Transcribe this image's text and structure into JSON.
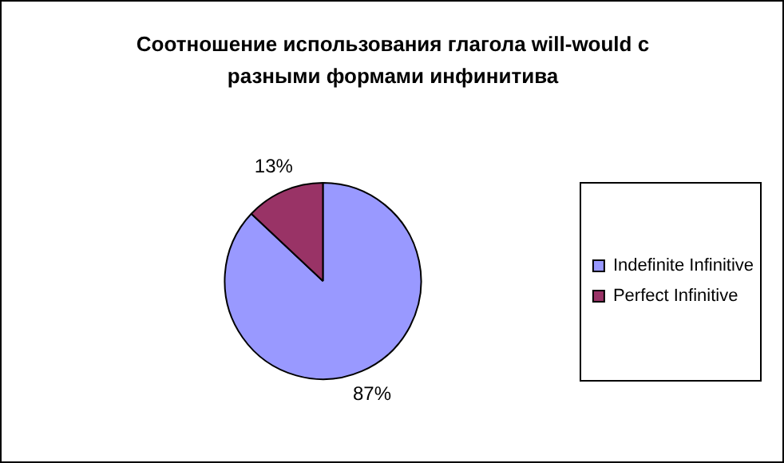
{
  "chart_data": {
    "type": "pie",
    "title": "Соотношение использования глагола will-would с разными формами инфинитива",
    "categories": [
      "Indefinite Infinitive",
      "Perfect Infinitive"
    ],
    "values": [
      87,
      13
    ],
    "colors": [
      "#9999ff",
      "#993366"
    ],
    "value_labels": [
      "87%",
      "13%"
    ],
    "legend": "right"
  }
}
